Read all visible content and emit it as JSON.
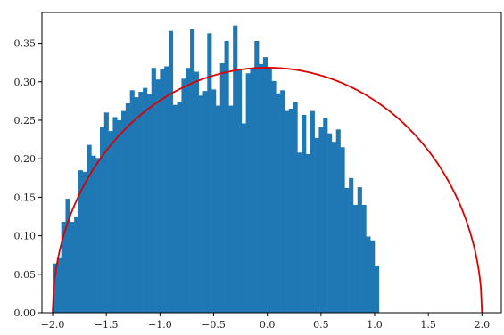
{
  "chart_data": {
    "type": "bar",
    "title": "",
    "xlabel": "",
    "ylabel": "",
    "xlim": [
      -2.1,
      2.18
    ],
    "ylim": [
      0,
      0.39
    ],
    "xticks": [
      -2.0,
      -1.5,
      -1.0,
      -0.5,
      0.0,
      0.5,
      1.0,
      1.5,
      2.0
    ],
    "xtick_labels": [
      "−2.0",
      "−1.5",
      "−1.0",
      "−0.5",
      "0.0",
      "0.5",
      "1.0",
      "1.5",
      "2.0"
    ],
    "yticks": [
      0.0,
      0.05,
      0.1,
      0.15,
      0.2,
      0.25,
      0.3,
      0.35
    ],
    "ytick_labels": [
      "0.00",
      "0.05",
      "0.10",
      "0.15",
      "0.20",
      "0.25",
      "0.30",
      "0.35"
    ],
    "grid": false,
    "series": [
      {
        "kind": "histogram",
        "color": "#1f77b4",
        "bin_start": -2.0,
        "bin_width": 0.04,
        "values": [
          0.064,
          0.071,
          0.118,
          0.148,
          0.118,
          0.125,
          0.185,
          0.183,
          0.218,
          0.204,
          0.201,
          0.241,
          0.26,
          0.236,
          0.254,
          0.25,
          0.262,
          0.272,
          0.289,
          0.28,
          0.287,
          0.292,
          0.284,
          0.318,
          0.303,
          0.316,
          0.32,
          0.366,
          0.27,
          0.274,
          0.304,
          0.318,
          0.369,
          0.313,
          0.282,
          0.288,
          0.363,
          0.29,
          0.269,
          0.324,
          0.353,
          0.269,
          0.373,
          0.316,
          0.246,
          0.311,
          0.318,
          0.353,
          0.323,
          0.332,
          0.318,
          0.301,
          0.285,
          0.289,
          0.262,
          0.265,
          0.274,
          0.208,
          0.257,
          0.206,
          0.262,
          0.227,
          0.241,
          0.253,
          0.233,
          0.222,
          0.238,
          0.215,
          0.162,
          0.175,
          0.14,
          0.163,
          0.14,
          0.099,
          0.094,
          0.061
        ]
      },
      {
        "kind": "line",
        "color": "#dd0000",
        "function": "semicircle",
        "radius": 2.0,
        "peak": 0.3183
      }
    ]
  }
}
